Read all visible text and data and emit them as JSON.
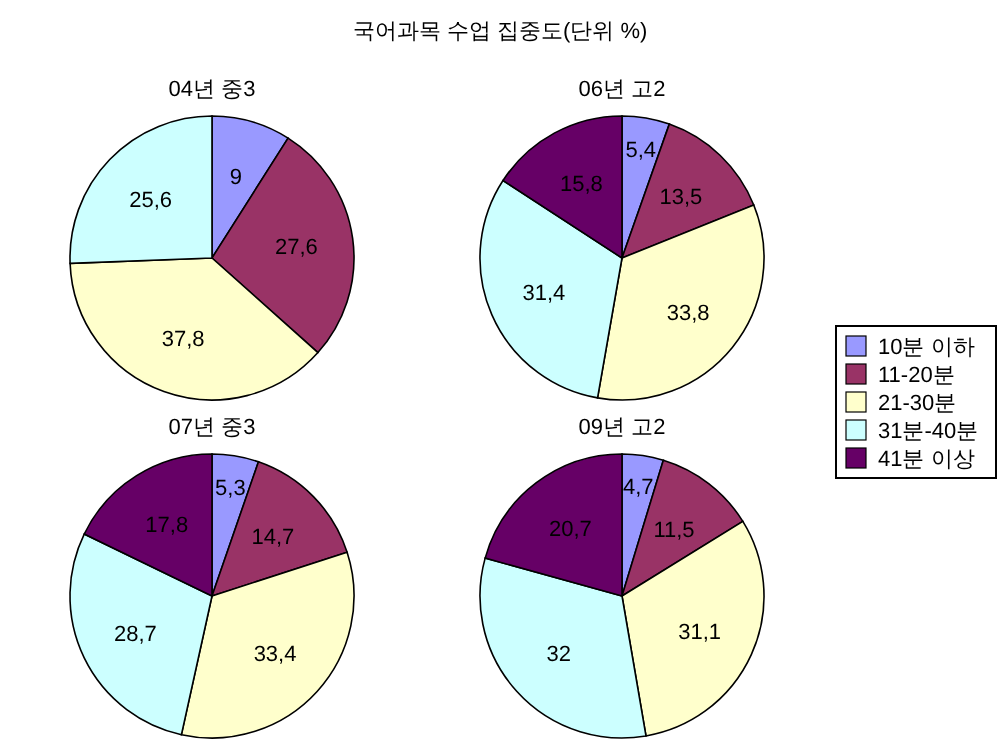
{
  "chart_data": [
    {
      "type": "pie",
      "title": "04년 중3",
      "annotations": [
        "국어과목 수업 집중도(단위 %)"
      ],
      "values": [
        9,
        27.6,
        37.8,
        25.6
      ],
      "colors": [
        "#9999ff",
        "#993366",
        "#ffffcc",
        "#ccffff"
      ],
      "value_labels": [
        "9",
        "27,6",
        "37,8",
        "25,6"
      ]
    },
    {
      "type": "pie",
      "title": "06년 고2",
      "legend": "right",
      "categories": [
        "10분 이하",
        "11-20분",
        "21-30분",
        "31분-40분",
        "41분 이상"
      ],
      "values": [
        5.4,
        13.5,
        33.8,
        31.4,
        15.8
      ],
      "colors": [
        "#9999ff",
        "#993366",
        "#ffffcc",
        "#ccffff",
        "#660066"
      ],
      "value_labels": [
        "5,4",
        "13,5",
        "33,8",
        "31,4",
        "15,8"
      ]
    },
    {
      "type": "pie",
      "title": "07년 중3",
      "values": [
        5.3,
        14.7,
        33.4,
        28.7,
        17.8
      ],
      "colors": [
        "#9999ff",
        "#993366",
        "#ffffcc",
        "#ccffff",
        "#660066"
      ],
      "value_labels": [
        "5,3",
        "14,7",
        "33,4",
        "28,7",
        "17,8"
      ]
    },
    {
      "type": "pie",
      "title": "09년 고2",
      "values": [
        4.7,
        11.5,
        31.1,
        32,
        20.7
      ],
      "colors": [
        "#9999ff",
        "#993366",
        "#ffffcc",
        "#ccffff",
        "#660066"
      ],
      "value_labels": [
        "4,7",
        "11,5",
        "31,1",
        "32",
        "20,7"
      ]
    }
  ]
}
